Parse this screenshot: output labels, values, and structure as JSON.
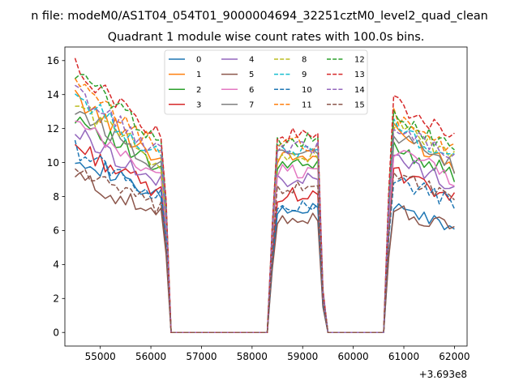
{
  "chart_data": {
    "type": "line",
    "suptitle": "n file: modeM0/AS1T04_054T01_9000004694_32251cztM0_level2_quad_clean",
    "title": "Quadrant 1 module wise count rates with 100.0s bins.",
    "xlabel": "",
    "ylabel": "",
    "x_offset_label": "+3.693e8",
    "xlim": [
      54300,
      62250
    ],
    "ylim": [
      -0.8,
      16.8
    ],
    "xticks": [
      55000,
      56000,
      57000,
      58000,
      59000,
      60000,
      61000,
      62000
    ],
    "yticks": [
      0,
      2,
      4,
      6,
      8,
      10,
      12,
      14,
      16
    ],
    "legend_position": "upper-center",
    "segments": [
      {
        "x_start": 54500,
        "x_end": 56300,
        "step": 100
      },
      {
        "x_start": 56400,
        "x_end": 58300,
        "step": 100,
        "zero": true
      },
      {
        "x_start": 58300,
        "x_end": 59400,
        "step": 100
      },
      {
        "x_start": 59500,
        "x_end": 60600,
        "step": 100,
        "zero": true
      },
      {
        "x_start": 60700,
        "x_end": 62000,
        "step": 100
      }
    ],
    "series": [
      {
        "name": "0",
        "color": "#1f77b4",
        "dash": "solid",
        "levels": [
          10.5,
          7.2,
          7.5
        ]
      },
      {
        "name": "1",
        "color": "#ff7f0e",
        "dash": "solid",
        "levels": [
          13.8,
          10.3,
          12.0
        ]
      },
      {
        "name": "2",
        "color": "#2ca02c",
        "dash": "solid",
        "levels": [
          12.8,
          9.8,
          11.2
        ]
      },
      {
        "name": "3",
        "color": "#d62728",
        "dash": "solid",
        "levels": [
          11.0,
          8.1,
          9.5
        ]
      },
      {
        "name": "4",
        "color": "#9467bd",
        "dash": "solid",
        "levels": [
          11.8,
          9.0,
          10.5
        ]
      },
      {
        "name": "5",
        "color": "#8c564b",
        "dash": "solid",
        "levels": [
          9.2,
          6.8,
          7.3
        ]
      },
      {
        "name": "6",
        "color": "#e377c2",
        "dash": "solid",
        "levels": [
          12.3,
          9.5,
          11.0
        ]
      },
      {
        "name": "7",
        "color": "#7f7f7f",
        "dash": "solid",
        "levels": [
          13.2,
          10.8,
          11.8
        ]
      },
      {
        "name": "8",
        "color": "#bcbd22",
        "dash": "dashed",
        "levels": [
          13.5,
          10.4,
          12.5
        ]
      },
      {
        "name": "9",
        "color": "#17becf",
        "dash": "dashed",
        "levels": [
          14.0,
          10.7,
          12.3
        ]
      },
      {
        "name": "10",
        "color": "#1f77b4",
        "dash": "dashed",
        "levels": [
          10.8,
          7.6,
          9.2
        ]
      },
      {
        "name": "11",
        "color": "#ff7f0e",
        "dash": "dashed",
        "levels": [
          14.6,
          11.1,
          13.0
        ]
      },
      {
        "name": "12",
        "color": "#2ca02c",
        "dash": "dashed",
        "levels": [
          15.3,
          11.3,
          13.0
        ]
      },
      {
        "name": "13",
        "color": "#d62728",
        "dash": "dashed",
        "levels": [
          15.6,
          11.6,
          13.8
        ]
      },
      {
        "name": "14",
        "color": "#9467bd",
        "dash": "dashed",
        "levels": [
          14.2,
          10.9,
          12.5
        ]
      },
      {
        "name": "15",
        "color": "#8c564b",
        "dash": "dashed",
        "levels": [
          9.7,
          8.5,
          9.6
        ]
      }
    ]
  }
}
